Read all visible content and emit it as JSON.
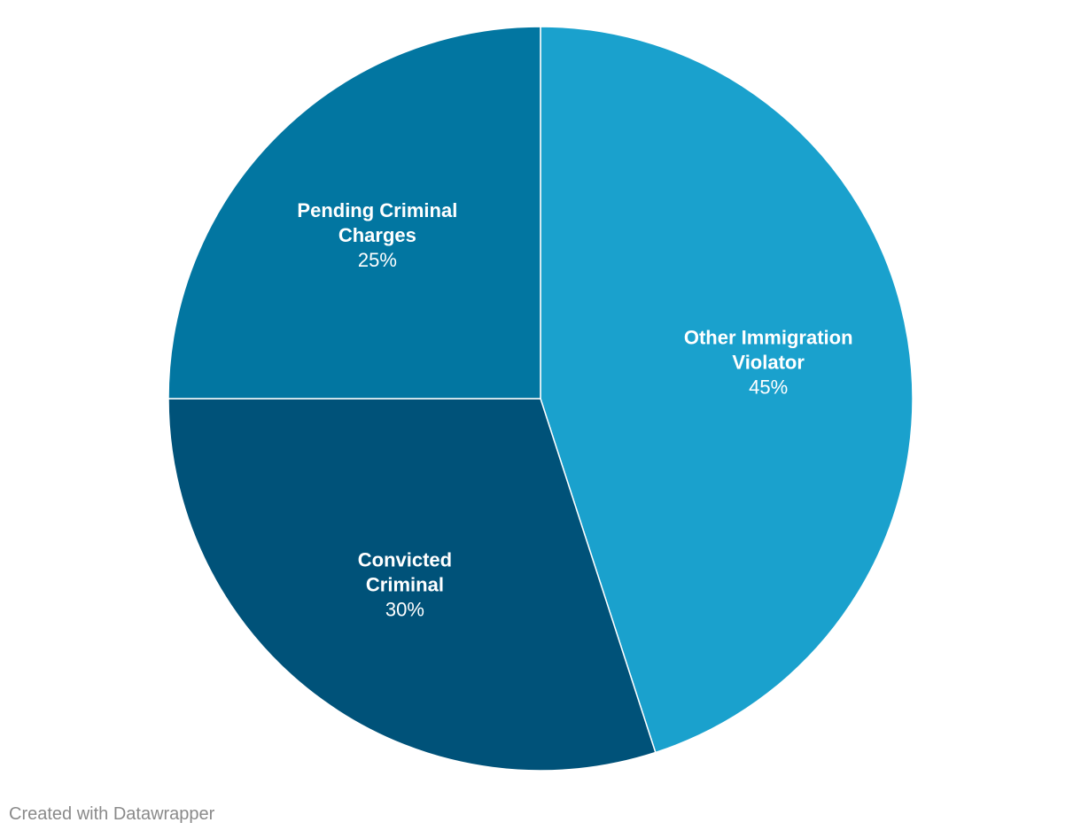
{
  "chart_data": {
    "type": "pie",
    "slices": [
      {
        "label_lines": [
          "Other Immigration",
          "Violator"
        ],
        "value": 45,
        "value_label": "45%",
        "color": "#1aa1cd"
      },
      {
        "label_lines": [
          "Convicted",
          "Criminal"
        ],
        "value": 30,
        "value_label": "30%",
        "color": "#005279"
      },
      {
        "label_lines": [
          "Pending Criminal",
          "Charges"
        ],
        "value": 25,
        "value_label": "25%",
        "color": "#0276a1"
      }
    ],
    "start_direction": "top",
    "direction": "clockwise"
  },
  "footer": {
    "credit": "Created with Datawrapper"
  }
}
